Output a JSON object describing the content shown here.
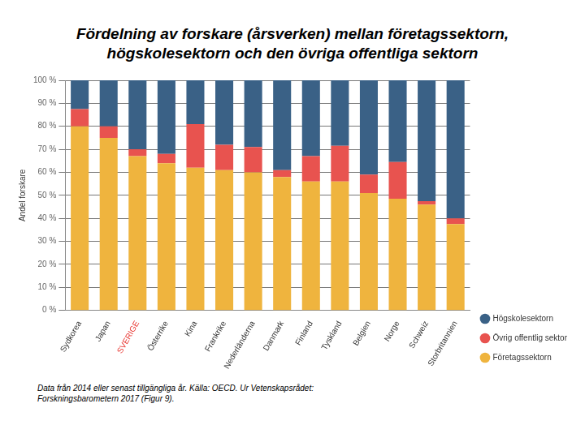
{
  "chart_data": {
    "type": "bar",
    "title": "Fördelning av forskare (årsverken) mellan företagssektorn, högskolesektorn och den övriga offentliga sektorn",
    "y_label": "Andel forskare",
    "source": "Data från 2014 eller senast tillgängliga år. Källa: OECD. Ur Vetenskapsrådet: Forskningsbarometern 2017 (Figur 9).",
    "categories": [
      "Sydkorea",
      "Japan",
      "SVERIGE",
      "Österrike",
      "Kina",
      "Frankrike",
      "Nederländerna",
      "Danmark",
      "Finland",
      "Tyskland",
      "Belgien",
      "Norge",
      "Schweiz",
      "Storbritannien"
    ],
    "series": [
      {
        "name": "Företagssektorn",
        "color": "#efb43e",
        "values": [
          80,
          75,
          67,
          64,
          62,
          61,
          60,
          58,
          56,
          56,
          51,
          48.5,
          46,
          37.5
        ]
      },
      {
        "name": "Övrig offentlig sektor",
        "color": "#e8534f",
        "values": [
          7.5,
          5,
          3,
          4,
          19,
          11,
          11,
          3,
          11,
          15.5,
          8,
          16,
          1.5,
          2.5
        ]
      },
      {
        "name": "Högskolesektorn",
        "color": "#3a6186",
        "values": [
          12.5,
          20,
          30,
          32,
          19,
          28,
          29,
          39,
          33,
          28.5,
          41,
          35.5,
          52.5,
          60
        ]
      }
    ],
    "stacked": true,
    "grid": true,
    "legend": "lower right",
    "ylim": [
      0,
      100
    ],
    "yticks": [
      {
        "value": 0,
        "label": "0 %"
      },
      {
        "value": 10,
        "label": "10 %"
      },
      {
        "value": 20,
        "label": "20 %"
      },
      {
        "value": 30,
        "label": "30 %"
      },
      {
        "value": 40,
        "label": "40 %"
      },
      {
        "value": 50,
        "label": "50 %"
      },
      {
        "value": 60,
        "label": "60 %"
      },
      {
        "value": 70,
        "label": "70 %"
      },
      {
        "value": 80,
        "label": "80 %"
      },
      {
        "value": 90,
        "label": "90 %"
      },
      {
        "value": 100,
        "label": "100 %"
      }
    ]
  }
}
